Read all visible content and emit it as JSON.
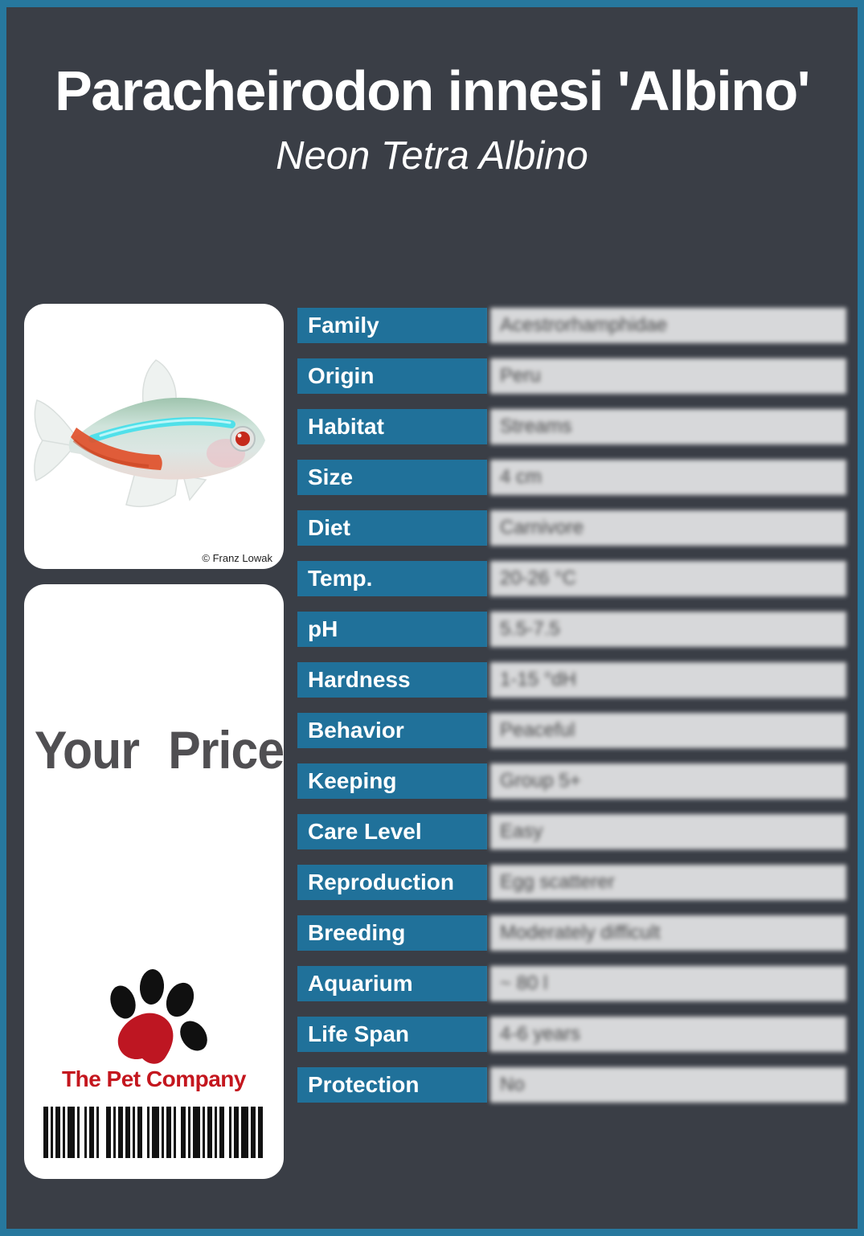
{
  "header": {
    "title": "Paracheirodon innesi 'Albino'",
    "subtitle": "Neon Tetra Albino"
  },
  "photo": {
    "credit": "© Franz Lowak"
  },
  "price_card": {
    "text": "Your Price"
  },
  "brand": {
    "name": "The Pet Company"
  },
  "table": {
    "rows": [
      {
        "label": "Family",
        "value": "Acestrorhamphidae"
      },
      {
        "label": "Origin",
        "value": "Peru"
      },
      {
        "label": "Habitat",
        "value": "Streams"
      },
      {
        "label": "Size",
        "value": "4 cm"
      },
      {
        "label": "Diet",
        "value": "Carnivore"
      },
      {
        "label": "Temp.",
        "value": "20-26 °C"
      },
      {
        "label": "pH",
        "value": "5.5-7.5"
      },
      {
        "label": "Hardness",
        "value": "1-15 °dH"
      },
      {
        "label": "Behavior",
        "value": "Peaceful"
      },
      {
        "label": "Keeping",
        "value": "Group 5+"
      },
      {
        "label": "Care Level",
        "value": "Easy"
      },
      {
        "label": "Reproduction",
        "value": "Egg scatterer"
      },
      {
        "label": "Breeding",
        "value": "Moderately difficult"
      },
      {
        "label": "Aquarium",
        "value": "~ 80 l"
      },
      {
        "label": "Life Span",
        "value": "4-6 years"
      },
      {
        "label": "Protection",
        "value": "No"
      }
    ]
  },
  "barcode": {
    "unit": 3,
    "pattern": [
      2,
      1,
      1,
      1,
      2,
      1,
      1,
      1,
      3,
      1,
      1,
      2,
      1,
      1,
      2,
      1,
      1,
      3,
      2,
      1,
      1,
      1,
      2,
      1,
      2,
      1,
      1,
      1,
      2,
      2,
      1,
      1,
      3,
      1,
      1,
      1,
      2,
      1,
      1,
      2,
      2,
      1,
      1,
      1,
      3,
      1,
      1,
      1,
      2,
      1,
      1,
      1,
      2,
      2,
      1,
      1,
      2,
      1,
      3,
      1,
      2,
      1,
      2
    ]
  },
  "colors": {
    "frame_teal": "#27789E",
    "bg_dark": "#3A3E46",
    "cell_teal": "#20719A",
    "brand_red": "#C4161E",
    "value_gray": "#4B4B4B",
    "price_gray": "#504F52"
  }
}
